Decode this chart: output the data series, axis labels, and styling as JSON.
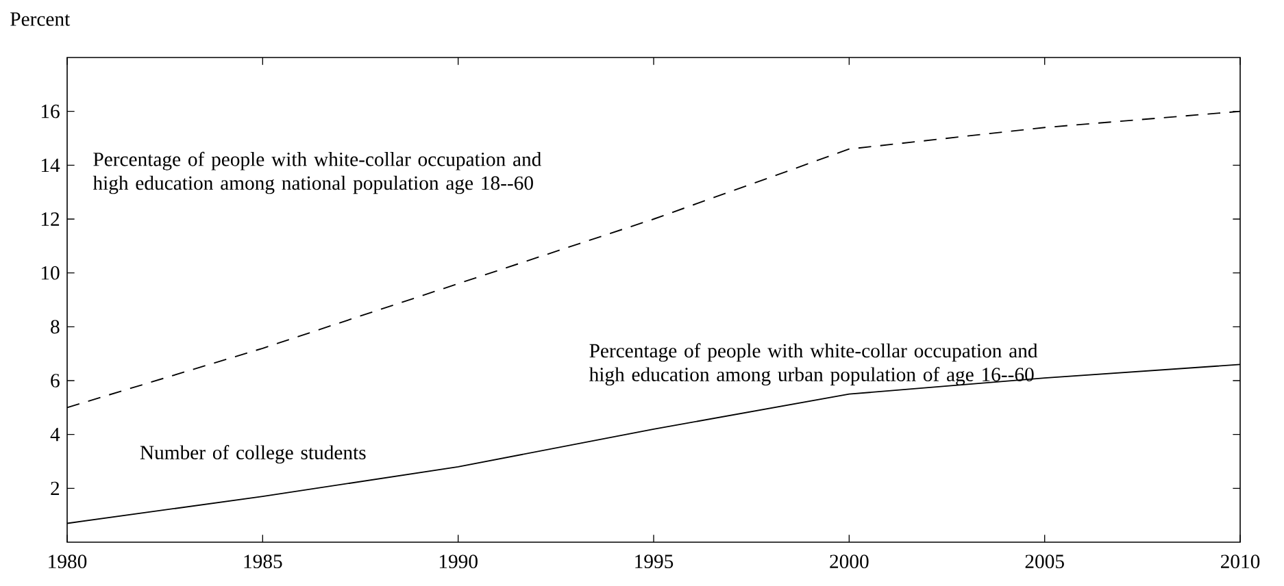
{
  "chart_data": {
    "type": "line",
    "ylabel": "Percent",
    "x": [
      1980,
      1985,
      1990,
      1995,
      2000,
      2005,
      2010
    ],
    "series": [
      {
        "color": "#000000",
        "line_style": "dashed",
        "values": [
          5,
          7.2,
          9.6,
          12,
          14.6,
          15.4,
          16
        ]
      },
      {
        "color": "#000000",
        "line_style": "solid",
        "values": [
          0.7,
          1.7,
          2.8,
          4.2,
          5.5,
          6.1,
          6.6
        ]
      }
    ],
    "annotations": [
      "Percentage of people with white-collar occupation and high education among national population age 18--60",
      "Percentage of people with white-collar occupation and high education among urban population of age 16--60",
      "Number of college students"
    ],
    "xlim": [
      1980,
      2010
    ],
    "xticks": [
      1980,
      1985,
      1990,
      1995,
      2000,
      2005,
      2010
    ],
    "ylim": [
      0,
      18
    ],
    "yticks": [
      2,
      4,
      6,
      8,
      10,
      12,
      14,
      16
    ],
    "grid": false,
    "marker": "none"
  }
}
